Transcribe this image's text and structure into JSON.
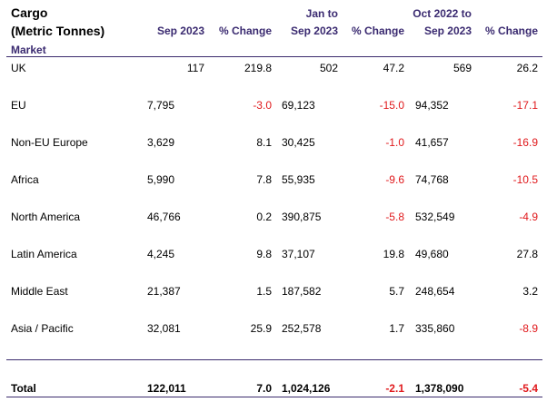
{
  "title_line1": "Cargo",
  "title_line2": "(Metric Tonnes)",
  "market_label": "Market",
  "headers": {
    "c1": "Sep 2023",
    "c2": "% Change",
    "c3_line1": "Jan to",
    "c3_line2": "Sep 2023",
    "c4": "% Change",
    "c5_line1": "Oct 2022 to",
    "c5_line2": "Sep 2023",
    "c6": "% Change"
  },
  "rows": [
    {
      "market": "UK",
      "v1": "117",
      "p1": "219.8",
      "v2": "502",
      "p2": "47.2",
      "v3": "569",
      "p3": "26.2"
    },
    {
      "market": "EU",
      "v1": "7,795",
      "p1": "-3.0",
      "v2": "69,123",
      "p2": "-15.0",
      "v3": "94,352",
      "p3": "-17.1"
    },
    {
      "market": "Non-EU Europe",
      "v1": "3,629",
      "p1": "8.1",
      "v2": "30,425",
      "p2": "-1.0",
      "v3": "41,657",
      "p3": "-16.9"
    },
    {
      "market": "Africa",
      "v1": "5,990",
      "p1": "7.8",
      "v2": "55,935",
      "p2": "-9.6",
      "v3": "74,768",
      "p3": "-10.5"
    },
    {
      "market": "North America",
      "v1": "46,766",
      "p1": "0.2",
      "v2": "390,875",
      "p2": "-5.8",
      "v3": "532,549",
      "p3": "-4.9"
    },
    {
      "market": "Latin America",
      "v1": "4,245",
      "p1": "9.8",
      "v2": "37,107",
      "p2": "19.8",
      "v3": "49,680",
      "p3": "27.8"
    },
    {
      "market": "Middle East",
      "v1": "21,387",
      "p1": "1.5",
      "v2": "187,582",
      "p2": "5.7",
      "v3": "248,654",
      "p3": "3.2"
    },
    {
      "market": "Asia / Pacific",
      "v1": "32,081",
      "p1": "25.9",
      "v2": "252,578",
      "p2": "1.7",
      "v3": "335,860",
      "p3": "-8.9"
    }
  ],
  "total": {
    "market": "Total",
    "v1": "122,011",
    "p1": "7.0",
    "v2": "1,024,126",
    "p2": "-2.1",
    "v3": "1,378,090",
    "p3": "-5.4"
  },
  "colors": {
    "header": "#3a2a70",
    "negative": "#e0191c",
    "rule": "#3b2c6e"
  }
}
